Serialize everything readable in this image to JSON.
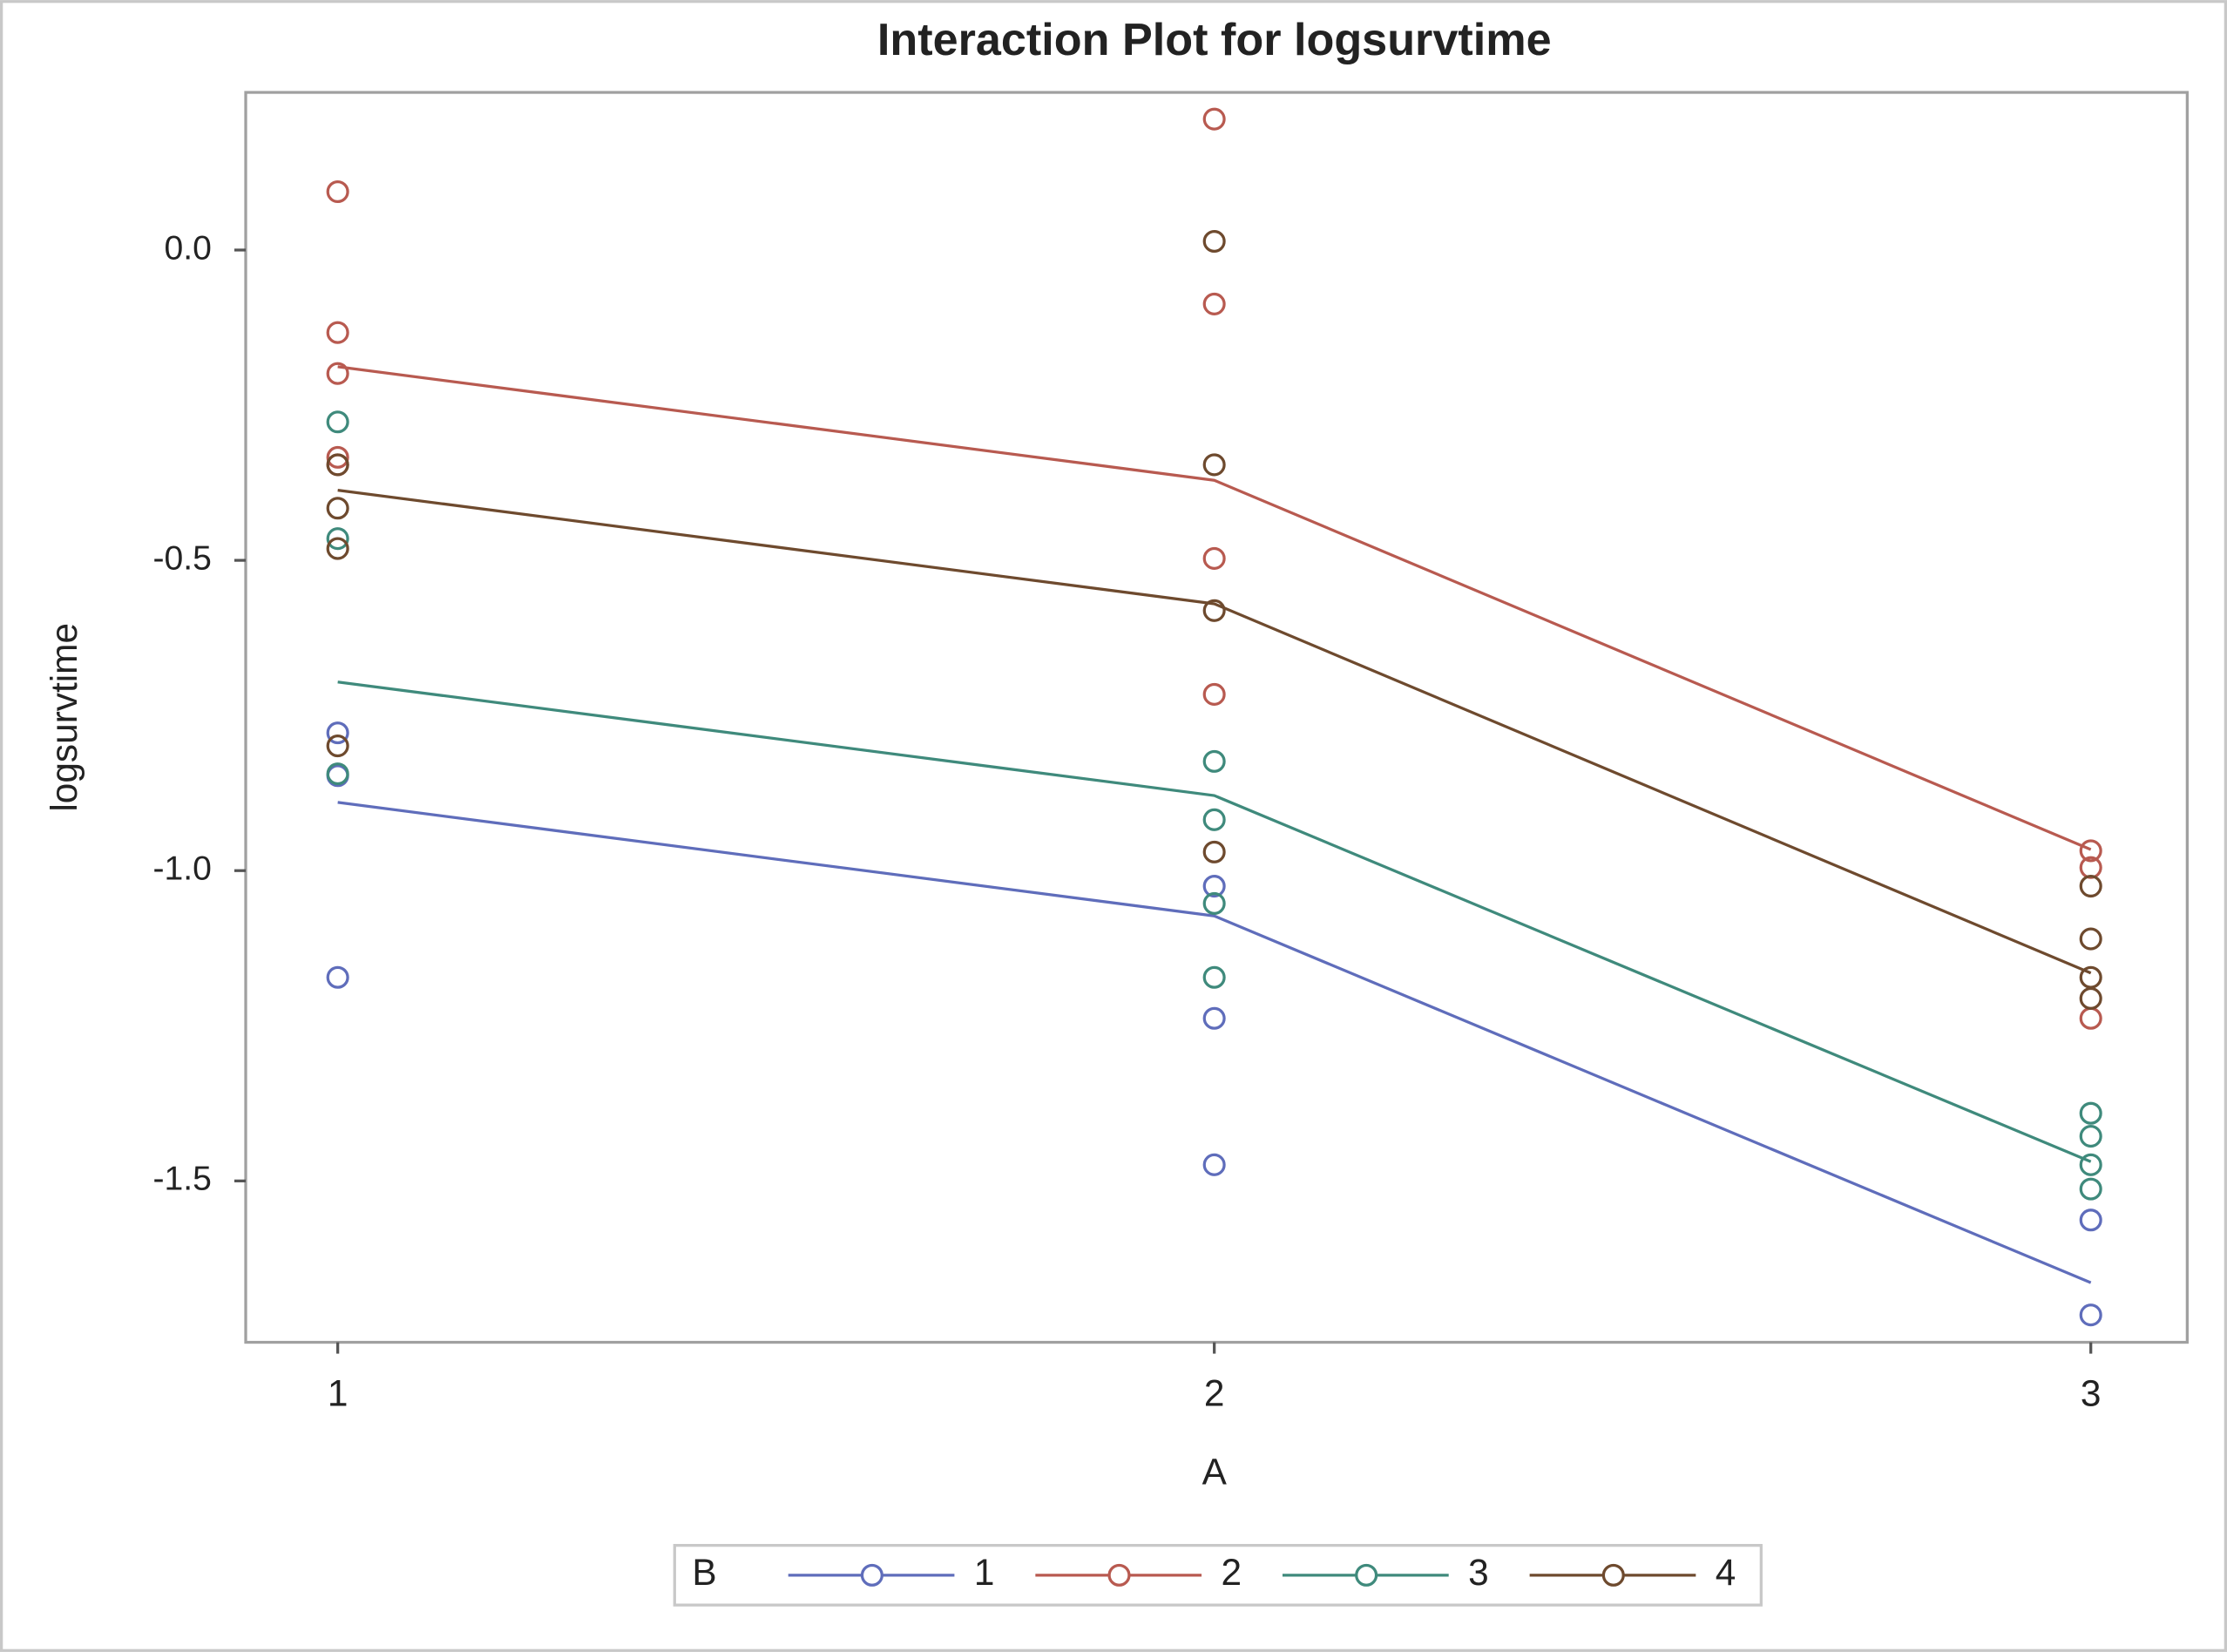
{
  "chart_data": {
    "type": "interaction",
    "title": "Interaction Plot for logsurvtime",
    "x_label": "A",
    "y_label": "logsurvtime",
    "legend_title": "B",
    "xlim": [
      0.895,
      3.11
    ],
    "ylim": [
      -1.76,
      0.254
    ],
    "xticks": [
      1,
      2,
      3
    ],
    "yticks": [
      {
        "value": 0,
        "label": "0.0"
      },
      -0.5,
      {
        "value": -1,
        "label": "-1.0"
      },
      -1.5
    ],
    "legend_position": "bottom",
    "series": [
      {
        "name": "1",
        "color": "#5f6dbb",
        "x": [
          1,
          2,
          3
        ],
        "means": [
          -0.89,
          -1.073,
          -1.664
        ],
        "points_x": [
          1,
          1,
          1,
          2,
          2,
          2,
          3,
          3
        ],
        "points_y": [
          -0.778,
          -0.847,
          -1.172,
          -1.025,
          -1.238,
          -1.474,
          -1.563,
          -1.716
        ]
      },
      {
        "name": "2",
        "color": "#b85a50",
        "x": [
          1,
          2,
          3
        ],
        "means": [
          -0.188,
          -0.371,
          -0.966
        ],
        "points_x": [
          1,
          1,
          1,
          1,
          1,
          2,
          2,
          2,
          2,
          3,
          3,
          3
        ],
        "points_y": [
          0.094,
          -0.133,
          -0.199,
          -0.334,
          -0.346,
          0.211,
          -0.087,
          -0.497,
          -0.716,
          -0.968,
          -0.995,
          -1.238
        ]
      },
      {
        "name": "3",
        "color": "#3f8a7c",
        "x": [
          1,
          2,
          3
        ],
        "means": [
          -0.696,
          -0.879,
          -1.469
        ],
        "points_x": [
          1,
          1,
          1,
          2,
          2,
          2,
          2,
          3,
          3,
          3,
          3
        ],
        "points_y": [
          -0.277,
          -0.465,
          -0.844,
          -0.824,
          -0.918,
          -1.053,
          -1.172,
          -1.391,
          -1.428,
          -1.474,
          -1.513
        ]
      },
      {
        "name": "4",
        "color": "#6e4a2e",
        "x": [
          1,
          2,
          3
        ],
        "means": [
          -0.387,
          -0.57,
          -1.165
        ],
        "points_x": [
          1,
          1,
          1,
          1,
          2,
          2,
          2,
          2,
          3,
          3,
          3,
          3
        ],
        "points_y": [
          -0.346,
          -0.416,
          -0.481,
          -0.799,
          0.014,
          -0.346,
          -0.581,
          -0.97,
          -1.025,
          -1.11,
          -1.172,
          -1.206
        ]
      }
    ]
  }
}
